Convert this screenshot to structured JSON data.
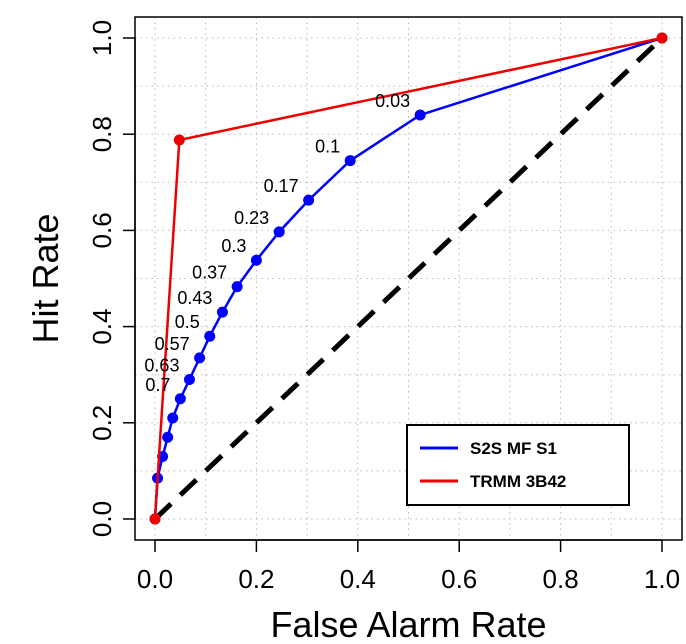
{
  "chart_data": {
    "type": "line",
    "xlabel": "False Alarm Rate",
    "ylabel": "Hit Rate",
    "xlim": [
      0,
      1
    ],
    "ylim": [
      0,
      1
    ],
    "x_ticks": [
      "0.0",
      "0.2",
      "0.4",
      "0.6",
      "0.8",
      "1.0"
    ],
    "y_ticks": [
      "0.0",
      "0.2",
      "0.4",
      "0.6",
      "0.8",
      "1.0"
    ],
    "grid": true,
    "legend_position": "bottom-right",
    "diagonal_reference": true,
    "series": [
      {
        "name": "S2S MF S1",
        "color": "#0000ff",
        "points": [
          {
            "x": 0.0,
            "y": 0.0,
            "label": ""
          },
          {
            "x": 0.005,
            "y": 0.085,
            "label": ""
          },
          {
            "x": 0.015,
            "y": 0.13,
            "label": ""
          },
          {
            "x": 0.025,
            "y": 0.17,
            "label": ""
          },
          {
            "x": 0.035,
            "y": 0.21,
            "label": ""
          },
          {
            "x": 0.05,
            "y": 0.25,
            "label": "0.7"
          },
          {
            "x": 0.068,
            "y": 0.29,
            "label": "0.63"
          },
          {
            "x": 0.088,
            "y": 0.335,
            "label": "0.57"
          },
          {
            "x": 0.108,
            "y": 0.38,
            "label": "0.5"
          },
          {
            "x": 0.133,
            "y": 0.43,
            "label": "0.43"
          },
          {
            "x": 0.162,
            "y": 0.483,
            "label": "0.37"
          },
          {
            "x": 0.2,
            "y": 0.538,
            "label": "0.3"
          },
          {
            "x": 0.245,
            "y": 0.597,
            "label": "0.23"
          },
          {
            "x": 0.303,
            "y": 0.663,
            "label": "0.17"
          },
          {
            "x": 0.385,
            "y": 0.745,
            "label": "0.1"
          },
          {
            "x": 0.523,
            "y": 0.84,
            "label": "0.03"
          },
          {
            "x": 1.0,
            "y": 1.0,
            "label": ""
          }
        ]
      },
      {
        "name": "TRMM 3B42",
        "color": "#ee0000",
        "points": [
          {
            "x": 0.0,
            "y": 0.0
          },
          {
            "x": 0.048,
            "y": 0.788
          },
          {
            "x": 1.0,
            "y": 1.0
          }
        ]
      }
    ]
  }
}
